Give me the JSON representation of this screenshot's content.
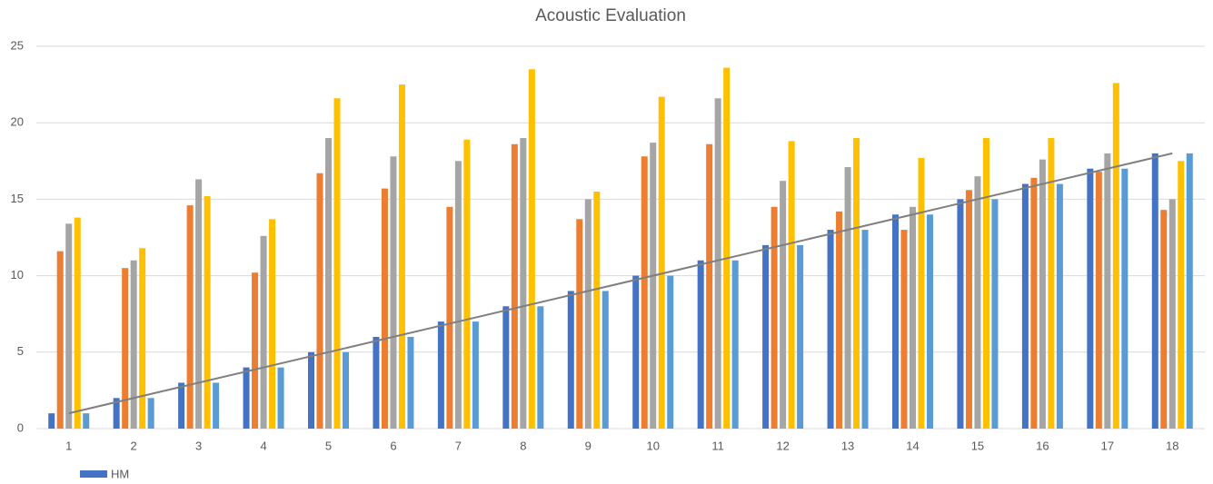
{
  "chart_data": {
    "type": "bar",
    "title": "Acoustic Evaluation",
    "categories": [
      "1",
      "2",
      "3",
      "4",
      "5",
      "6",
      "7",
      "8",
      "9",
      "10",
      "11",
      "12",
      "13",
      "14",
      "15",
      "16",
      "17",
      "18"
    ],
    "series": [
      {
        "name": "HM",
        "color": "#4472c4",
        "values": [
          1,
          2,
          3,
          4,
          5,
          6,
          7,
          8,
          9,
          10,
          11,
          12,
          13,
          14,
          15,
          16,
          17,
          18
        ]
      },
      {
        "color": "#ed7d31",
        "values": [
          11.6,
          10.5,
          14.6,
          10.2,
          16.7,
          15.7,
          14.5,
          18.6,
          13.7,
          17.8,
          18.6,
          14.5,
          14.2,
          13,
          15.6,
          16.4,
          16.8,
          14.3
        ]
      },
      {
        "color": "#a5a5a5",
        "values": [
          13.4,
          11,
          16.3,
          12.6,
          19,
          17.8,
          17.5,
          19,
          15,
          18.7,
          21.6,
          16.2,
          17.1,
          14.5,
          16.5,
          17.6,
          18,
          15
        ]
      },
      {
        "color": "#ffc000",
        "values": [
          13.8,
          11.8,
          15.2,
          13.7,
          21.6,
          22.5,
          18.9,
          23.5,
          15.5,
          21.7,
          23.6,
          18.8,
          19,
          17.7,
          19,
          19,
          22.6,
          17.5
        ]
      },
      {
        "color": "#5b9bd5",
        "values": [
          1,
          2,
          3,
          4,
          5,
          6,
          7,
          8,
          9,
          10,
          11,
          12,
          13,
          14,
          15,
          16,
          17,
          18
        ]
      }
    ],
    "trendline": true,
    "ylim": [
      0,
      25
    ],
    "yticks": [
      0,
      5,
      10,
      15,
      20,
      25
    ],
    "grid": true,
    "legend": "bottom"
  }
}
